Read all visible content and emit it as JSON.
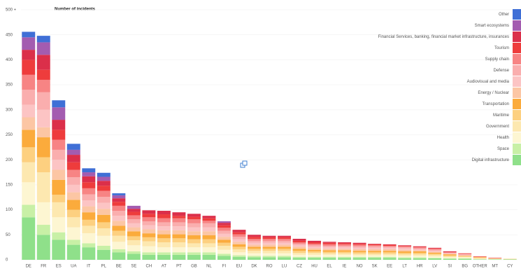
{
  "chart_data": {
    "type": "stacked_bar",
    "title": "Number of incidents",
    "categories": [
      "DE",
      "FR",
      "ES",
      "UA",
      "IT",
      "PL",
      "BE",
      "SE",
      "CH",
      "AT",
      "PT",
      "GB",
      "NL",
      "FI",
      "EU",
      "DK",
      "RO",
      "LU",
      "CZ",
      "HU",
      "EL",
      "IE",
      "NO",
      "SK",
      "EE",
      "LT",
      "HR",
      "LV",
      "SI",
      "BG",
      "OTHER",
      "MT",
      "CY"
    ],
    "ylim": [
      0,
      500
    ],
    "yticks": [
      0,
      50,
      100,
      150,
      200,
      250,
      300,
      350,
      400,
      450,
      {
        "value": 500,
        "label": "500 +"
      }
    ],
    "grid": true,
    "legend": "top-right",
    "series": [
      {
        "name": "Digital infrastructure",
        "color": "#8fe08a",
        "values": [
          85,
          50,
          40,
          30,
          25,
          20,
          15,
          12,
          10,
          10,
          10,
          10,
          10,
          8,
          6,
          5,
          5,
          5,
          4,
          4,
          4,
          4,
          4,
          4,
          4,
          3,
          3,
          3,
          2,
          2,
          1,
          1,
          1
        ]
      },
      {
        "name": "Space",
        "color": "#c8f0a6",
        "values": [
          25,
          20,
          15,
          10,
          8,
          8,
          6,
          5,
          5,
          5,
          5,
          5,
          5,
          4,
          3,
          3,
          3,
          3,
          2,
          2,
          2,
          2,
          2,
          2,
          2,
          2,
          2,
          1,
          1,
          1,
          0,
          0,
          0
        ]
      },
      {
        "name": "Health",
        "color": "#fdf6d2",
        "values": [
          45,
          45,
          30,
          25,
          20,
          20,
          15,
          12,
          12,
          10,
          10,
          10,
          10,
          8,
          6,
          5,
          5,
          5,
          4,
          4,
          4,
          4,
          3,
          3,
          3,
          3,
          3,
          3,
          2,
          2,
          1,
          1,
          0
        ]
      },
      {
        "name": "Government",
        "color": "#fde8b0",
        "values": [
          40,
          60,
          30,
          20,
          15,
          15,
          12,
          10,
          10,
          10,
          10,
          8,
          8,
          8,
          6,
          5,
          5,
          5,
          4,
          4,
          3,
          3,
          3,
          3,
          3,
          3,
          3,
          3,
          2,
          1,
          1,
          0,
          0
        ]
      },
      {
        "name": "Maritime",
        "color": "#fdd080",
        "values": [
          30,
          30,
          15,
          15,
          12,
          12,
          10,
          8,
          8,
          8,
          8,
          8,
          8,
          6,
          5,
          4,
          4,
          4,
          4,
          3,
          3,
          3,
          3,
          3,
          3,
          3,
          3,
          2,
          2,
          1,
          1,
          1,
          1
        ]
      },
      {
        "name": "Transportation",
        "color": "#fbab3c",
        "values": [
          35,
          40,
          30,
          20,
          15,
          15,
          10,
          10,
          8,
          8,
          8,
          8,
          8,
          6,
          5,
          4,
          4,
          4,
          4,
          3,
          3,
          3,
          3,
          3,
          3,
          3,
          3,
          2,
          2,
          1,
          1,
          0,
          0
        ]
      },
      {
        "name": "Energy / Nuclear",
        "color": "#fcc6a4",
        "values": [
          25,
          20,
          20,
          15,
          12,
          12,
          10,
          8,
          8,
          8,
          8,
          8,
          8,
          6,
          5,
          4,
          4,
          4,
          4,
          3,
          3,
          3,
          3,
          3,
          3,
          3,
          2,
          2,
          1,
          1,
          1,
          0,
          0
        ]
      },
      {
        "name": "Audiovisual and media",
        "color": "#fcc4c4",
        "values": [
          25,
          35,
          20,
          15,
          12,
          12,
          10,
          8,
          8,
          8,
          8,
          8,
          8,
          6,
          5,
          4,
          4,
          4,
          3,
          3,
          3,
          3,
          3,
          3,
          3,
          3,
          2,
          2,
          1,
          1,
          0,
          0,
          0
        ]
      },
      {
        "name": "Defense",
        "color": "#faaeae",
        "values": [
          30,
          35,
          20,
          15,
          12,
          12,
          10,
          8,
          8,
          8,
          8,
          8,
          8,
          6,
          5,
          4,
          4,
          4,
          3,
          3,
          3,
          3,
          3,
          3,
          2,
          2,
          2,
          2,
          1,
          1,
          0,
          0,
          0
        ]
      },
      {
        "name": "Supply chain",
        "color": "#f78484",
        "values": [
          30,
          25,
          20,
          15,
          12,
          12,
          10,
          8,
          8,
          8,
          8,
          8,
          5,
          6,
          5,
          4,
          4,
          4,
          3,
          3,
          3,
          3,
          3,
          2,
          2,
          2,
          2,
          2,
          1,
          1,
          0,
          0,
          0
        ]
      },
      {
        "name": "Tourism",
        "color": "#ee3c3c",
        "values": [
          30,
          20,
          20,
          15,
          12,
          10,
          8,
          7,
          7,
          8,
          5,
          5,
          5,
          5,
          4,
          4,
          3,
          3,
          3,
          3,
          3,
          2,
          2,
          2,
          2,
          1,
          1,
          1,
          1,
          1,
          1,
          1,
          0
        ]
      },
      {
        "name": "Financial Services, banking, financial market infrastructure, insurances",
        "color": "#db2f4a",
        "values": [
          20,
          30,
          20,
          15,
          12,
          10,
          7,
          6,
          7,
          7,
          7,
          6,
          5,
          5,
          5,
          4,
          3,
          3,
          4,
          3,
          2,
          2,
          2,
          1,
          1,
          1,
          1,
          1,
          1,
          0,
          0,
          0,
          0
        ]
      },
      {
        "name": "Smart ecosystems",
        "color": "#a35cb0",
        "values": [
          25,
          25,
          25,
          10,
          8,
          8,
          6,
          6,
          0,
          0,
          0,
          0,
          0,
          3,
          0,
          0,
          0,
          0,
          0,
          0,
          0,
          0,
          0,
          0,
          0,
          0,
          0,
          0,
          0,
          0,
          0,
          0,
          0
        ]
      },
      {
        "name": "Other",
        "color": "#3f6fd6",
        "values": [
          11,
          13,
          14,
          12,
          8,
          8,
          4,
          0,
          0,
          0,
          0,
          0,
          0,
          0,
          0,
          0,
          0,
          0,
          0,
          0,
          0,
          0,
          0,
          0,
          0,
          0,
          0,
          0,
          0,
          0,
          0,
          0,
          0
        ]
      }
    ]
  }
}
